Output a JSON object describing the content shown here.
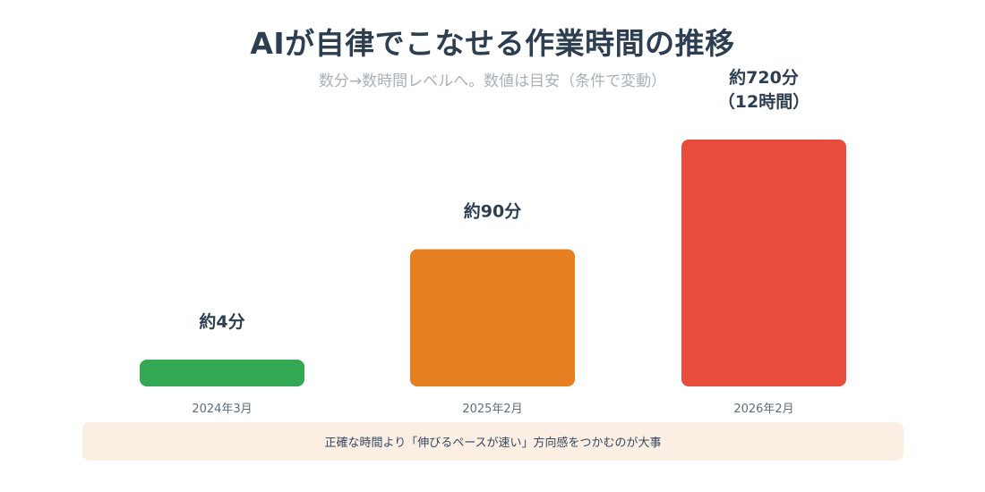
{
  "header": {
    "title": "AIが自律でこなせる作業時間の推移",
    "subtitle": "数分→数時間レベルへ。数値は目安（条件で変動）"
  },
  "chart_data": {
    "type": "bar",
    "categories": [
      "2024年3月",
      "2025年2月",
      "2026年2月"
    ],
    "values": [
      4,
      90,
      720
    ],
    "value_labels": [
      [
        "約4分"
      ],
      [
        "約90分"
      ],
      [
        "約720分",
        "（12時間）"
      ]
    ],
    "colors": [
      "#34a853",
      "#e67e22",
      "#e74c3c"
    ],
    "unit": "分",
    "grid": false,
    "legend": "none"
  },
  "footer": {
    "note": "正確な時間より「伸びるペースが速い」方向感をつかむのが大事"
  }
}
